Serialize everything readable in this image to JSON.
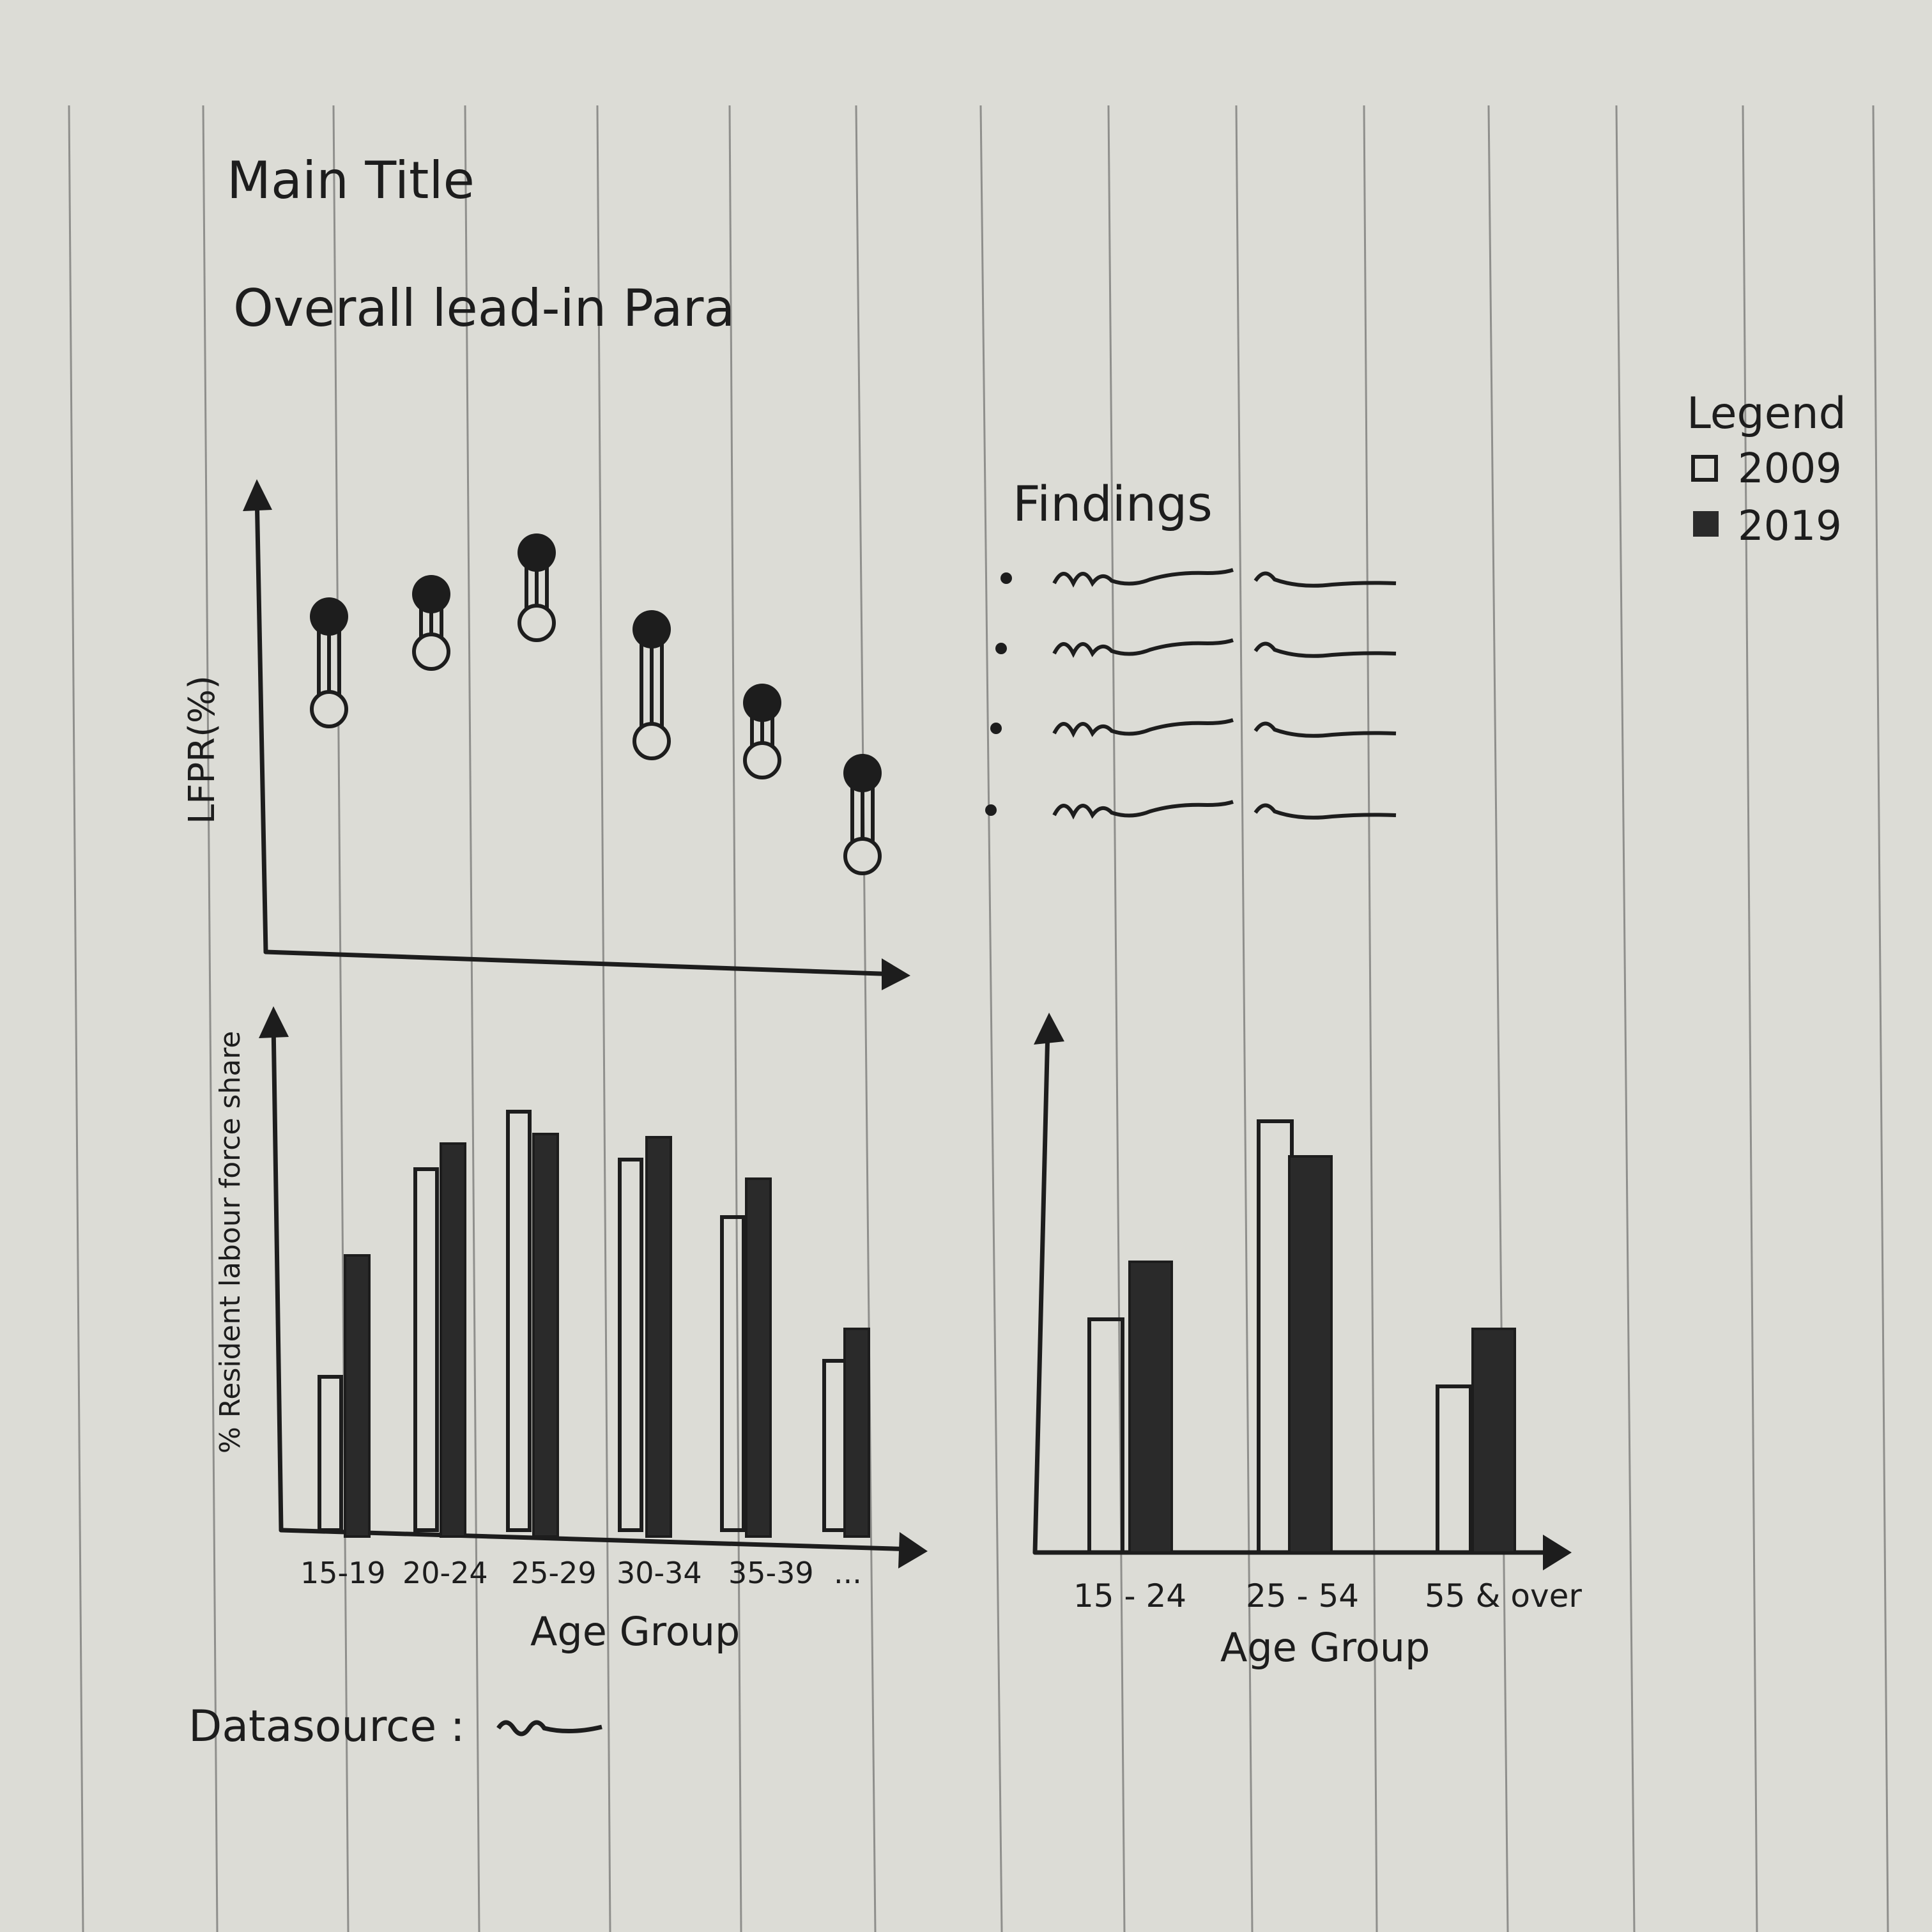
{
  "header": {
    "title": "Main Title",
    "lead_in": "Overall lead-in Para"
  },
  "legend": {
    "title": "Legend",
    "items": [
      {
        "label": "2009",
        "style": "open"
      },
      {
        "label": "2019",
        "style": "filled"
      }
    ]
  },
  "findings": {
    "title": "Findings",
    "bullet_count": 4
  },
  "dumbbell": {
    "ylabel": "LFPR(%)",
    "groups": 6
  },
  "bar_left": {
    "ylabel": "% Resident labour force share",
    "xlabel": "Age Group",
    "categories": [
      "15-19",
      "20-24",
      "25-29",
      "30-34",
      "35-39",
      "..."
    ]
  },
  "bar_right": {
    "xlabel": "Age Group",
    "categories": [
      "15 - 24",
      "25 - 54",
      "55 & over"
    ]
  },
  "footer": {
    "datasource_label": "Datasource :"
  },
  "colors": {
    "paper": "#dcdcd6",
    "ink": "#1d1d1d",
    "rule": "#8f8f8c"
  }
}
